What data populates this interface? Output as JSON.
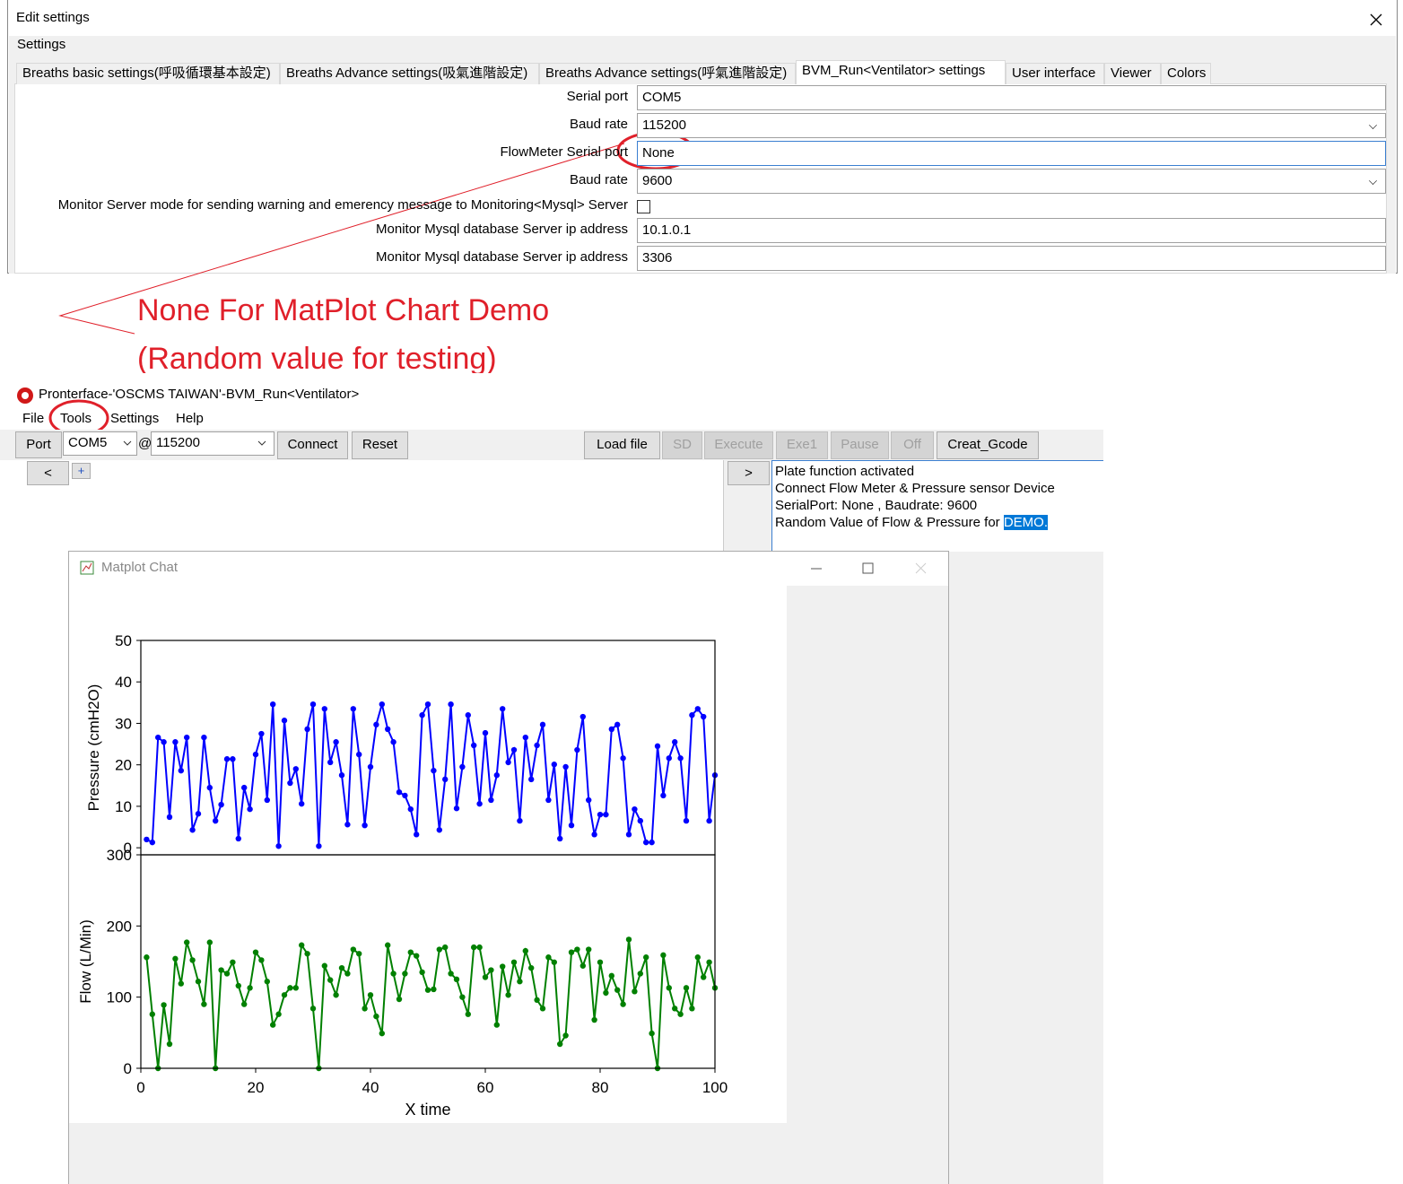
{
  "settings_dialog": {
    "title": "Edit settings",
    "group": "Settings",
    "tabs": [
      "Breaths basic settings(呼吸循環基本設定)",
      "Breaths Advance settings(吸氣進階設定)",
      "Breaths Advance settings(呼氣進階設定)",
      "BVM_Run<Ventilator> settings",
      "User interface",
      "Viewer",
      "Colors"
    ],
    "fields": [
      {
        "label": "Serial port",
        "value": "COM5"
      },
      {
        "label": "Baud rate",
        "value": "115200"
      },
      {
        "label": "FlowMeter Serial port",
        "value": "None"
      },
      {
        "label": "Baud rate",
        "value": "9600"
      },
      {
        "label": "Monitor Server mode for sending warning and emerency message to Monitoring<Mysql> Server"
      },
      {
        "label": "Monitor Mysql database Server ip address",
        "value": "10.1.0.1"
      },
      {
        "label": "Monitor Mysql database Server ip address",
        "value": "3306"
      }
    ]
  },
  "annotation": [
    "None   For  MatPlot Chart Demo",
    "(Random value for testing)"
  ],
  "app": {
    "title": "Pronterface-'OSCMS TAIWAN'-BVM_Run<Ventilator>",
    "menu": [
      "File",
      "Tools",
      "Settings",
      "Help"
    ],
    "port_button": "Port",
    "port": "COM5",
    "at": "@",
    "baud": "115200",
    "buttons": [
      "Connect",
      "Reset"
    ],
    "file_buttons": [
      "Load file",
      "SD",
      "Execute",
      "Exe1",
      "Pause",
      "Off",
      "Creat_Gcode"
    ],
    "prev": "<",
    "add": "+",
    "next": ">",
    "log": [
      "Plate function activated",
      "Connect Flow Meter & Pressure sensor Device",
      "SerialPort: None , Baudrate: 9600",
      "Random Value of Flow & Pressure for "
    ],
    "log_highlight": "DEMO."
  },
  "plot_window": {
    "title": "Matplot Chat"
  },
  "chart_data": [
    {
      "type": "line",
      "y_label": "Pressure (cmH2O)",
      "marker": "o",
      "xlim": [
        0,
        100
      ],
      "ylim": [
        -1.7,
        50
      ],
      "yticks": [
        0,
        10,
        20,
        30,
        40,
        50
      ],
      "x": [
        1,
        2,
        3,
        4,
        5,
        6,
        7,
        8,
        9,
        10,
        11,
        12,
        13,
        14,
        15,
        16,
        17,
        18,
        19,
        20,
        21,
        22,
        23,
        24,
        25,
        26,
        27,
        28,
        29,
        30,
        31,
        32,
        33,
        34,
        35,
        36,
        37,
        38,
        39,
        40,
        41,
        42,
        43,
        44,
        45,
        46,
        47,
        48,
        49,
        50,
        51,
        52,
        53,
        54,
        55,
        56,
        57,
        58,
        59,
        60,
        61,
        62,
        63,
        64,
        65,
        66,
        67,
        68,
        69,
        70,
        71,
        72,
        73,
        74,
        75,
        76,
        77,
        78,
        79,
        80,
        81,
        82,
        83,
        84,
        85,
        86,
        87,
        88,
        89,
        90,
        91,
        92,
        93,
        94,
        95,
        96,
        97,
        98,
        99,
        100
      ],
      "series": [
        {
          "color": "#0000ff",
          "values": [
            2,
            1.3,
            26.6,
            25.5,
            7.4,
            25.5,
            18.6,
            26.6,
            4.3,
            8.2,
            26.6,
            14.5,
            6.5,
            10.4,
            21.4,
            21.4,
            2.2,
            14.5,
            9.3,
            22.5,
            27.5,
            11.5,
            34.6,
            0.4,
            30.7,
            15.6,
            19,
            10.6,
            28.6,
            34.6,
            0.4,
            33.5,
            20.6,
            25.5,
            17.5,
            5.6,
            33.5,
            22.5,
            5.4,
            19.5,
            29.7,
            34.6,
            28.6,
            25.5,
            13.4,
            12.6,
            9.3,
            3.2,
            32,
            34.6,
            18.6,
            4.3,
            16.5,
            34.6,
            9.5,
            19.5,
            32,
            24.7,
            10.6,
            27.7,
            11.5,
            17.5,
            33.5,
            20.6,
            23.6,
            6.5,
            26.6,
            16.5,
            24.7,
            29.7,
            11.5,
            20.1,
            2.2,
            19.5,
            5.4,
            23.6,
            31.6,
            11.5,
            3.2,
            8,
            8,
            28.6,
            29.7,
            21.6,
            3.2,
            9.3,
            6.5,
            1.3,
            1.3,
            24.5,
            12.6,
            21.6,
            25.5,
            21.6,
            6.5,
            32,
            33.5,
            31.6,
            6.5,
            17.5
          ]
        }
      ]
    },
    {
      "type": "line",
      "y_label": "Flow (L/Min)",
      "x_label": "X time",
      "marker": "o",
      "xlim": [
        0,
        100
      ],
      "ylim": [
        0,
        300
      ],
      "xticks": [
        0,
        20,
        40,
        60,
        80,
        100
      ],
      "yticks": [
        0,
        100,
        200,
        300
      ],
      "x": [
        1,
        2,
        3,
        4,
        5,
        6,
        7,
        8,
        9,
        10,
        11,
        12,
        13,
        14,
        15,
        16,
        17,
        18,
        19,
        20,
        21,
        22,
        23,
        24,
        25,
        26,
        27,
        28,
        29,
        30,
        31,
        32,
        33,
        34,
        35,
        36,
        37,
        38,
        39,
        40,
        41,
        42,
        43,
        44,
        45,
        46,
        47,
        48,
        49,
        50,
        51,
        52,
        53,
        54,
        55,
        56,
        57,
        58,
        59,
        60,
        61,
        62,
        63,
        64,
        65,
        66,
        67,
        68,
        69,
        70,
        71,
        72,
        73,
        74,
        75,
        76,
        77,
        78,
        79,
        80,
        81,
        82,
        83,
        84,
        85,
        86,
        87,
        88,
        89,
        90,
        91,
        92,
        93,
        94,
        95,
        96,
        97,
        98,
        99,
        100
      ],
      "series": [
        {
          "color": "#008000",
          "values": [
            156,
            76,
            0,
            89,
            34,
            154,
            119,
            177,
            152,
            122,
            90,
            177,
            0,
            138,
            133,
            149,
            116,
            90,
            113,
            163,
            152,
            122,
            61,
            76,
            103,
            113,
            113,
            173,
            161,
            84,
            0,
            144,
            124,
            103,
            141,
            133,
            167,
            161,
            84,
            103,
            73,
            49,
            173,
            133,
            97,
            133,
            163,
            158,
            135,
            110,
            111,
            167,
            170,
            133,
            125,
            100,
            76,
            170,
            170,
            128,
            138,
            61,
            143,
            103,
            149,
            122,
            165,
            141,
            96,
            84,
            156,
            149,
            34,
            46,
            163,
            167,
            144,
            167,
            68,
            149,
            106,
            130,
            110,
            90,
            181,
            108,
            133,
            156,
            49,
            0,
            159,
            113,
            84,
            76,
            113,
            84,
            156,
            128,
            149,
            113
          ]
        }
      ]
    }
  ]
}
